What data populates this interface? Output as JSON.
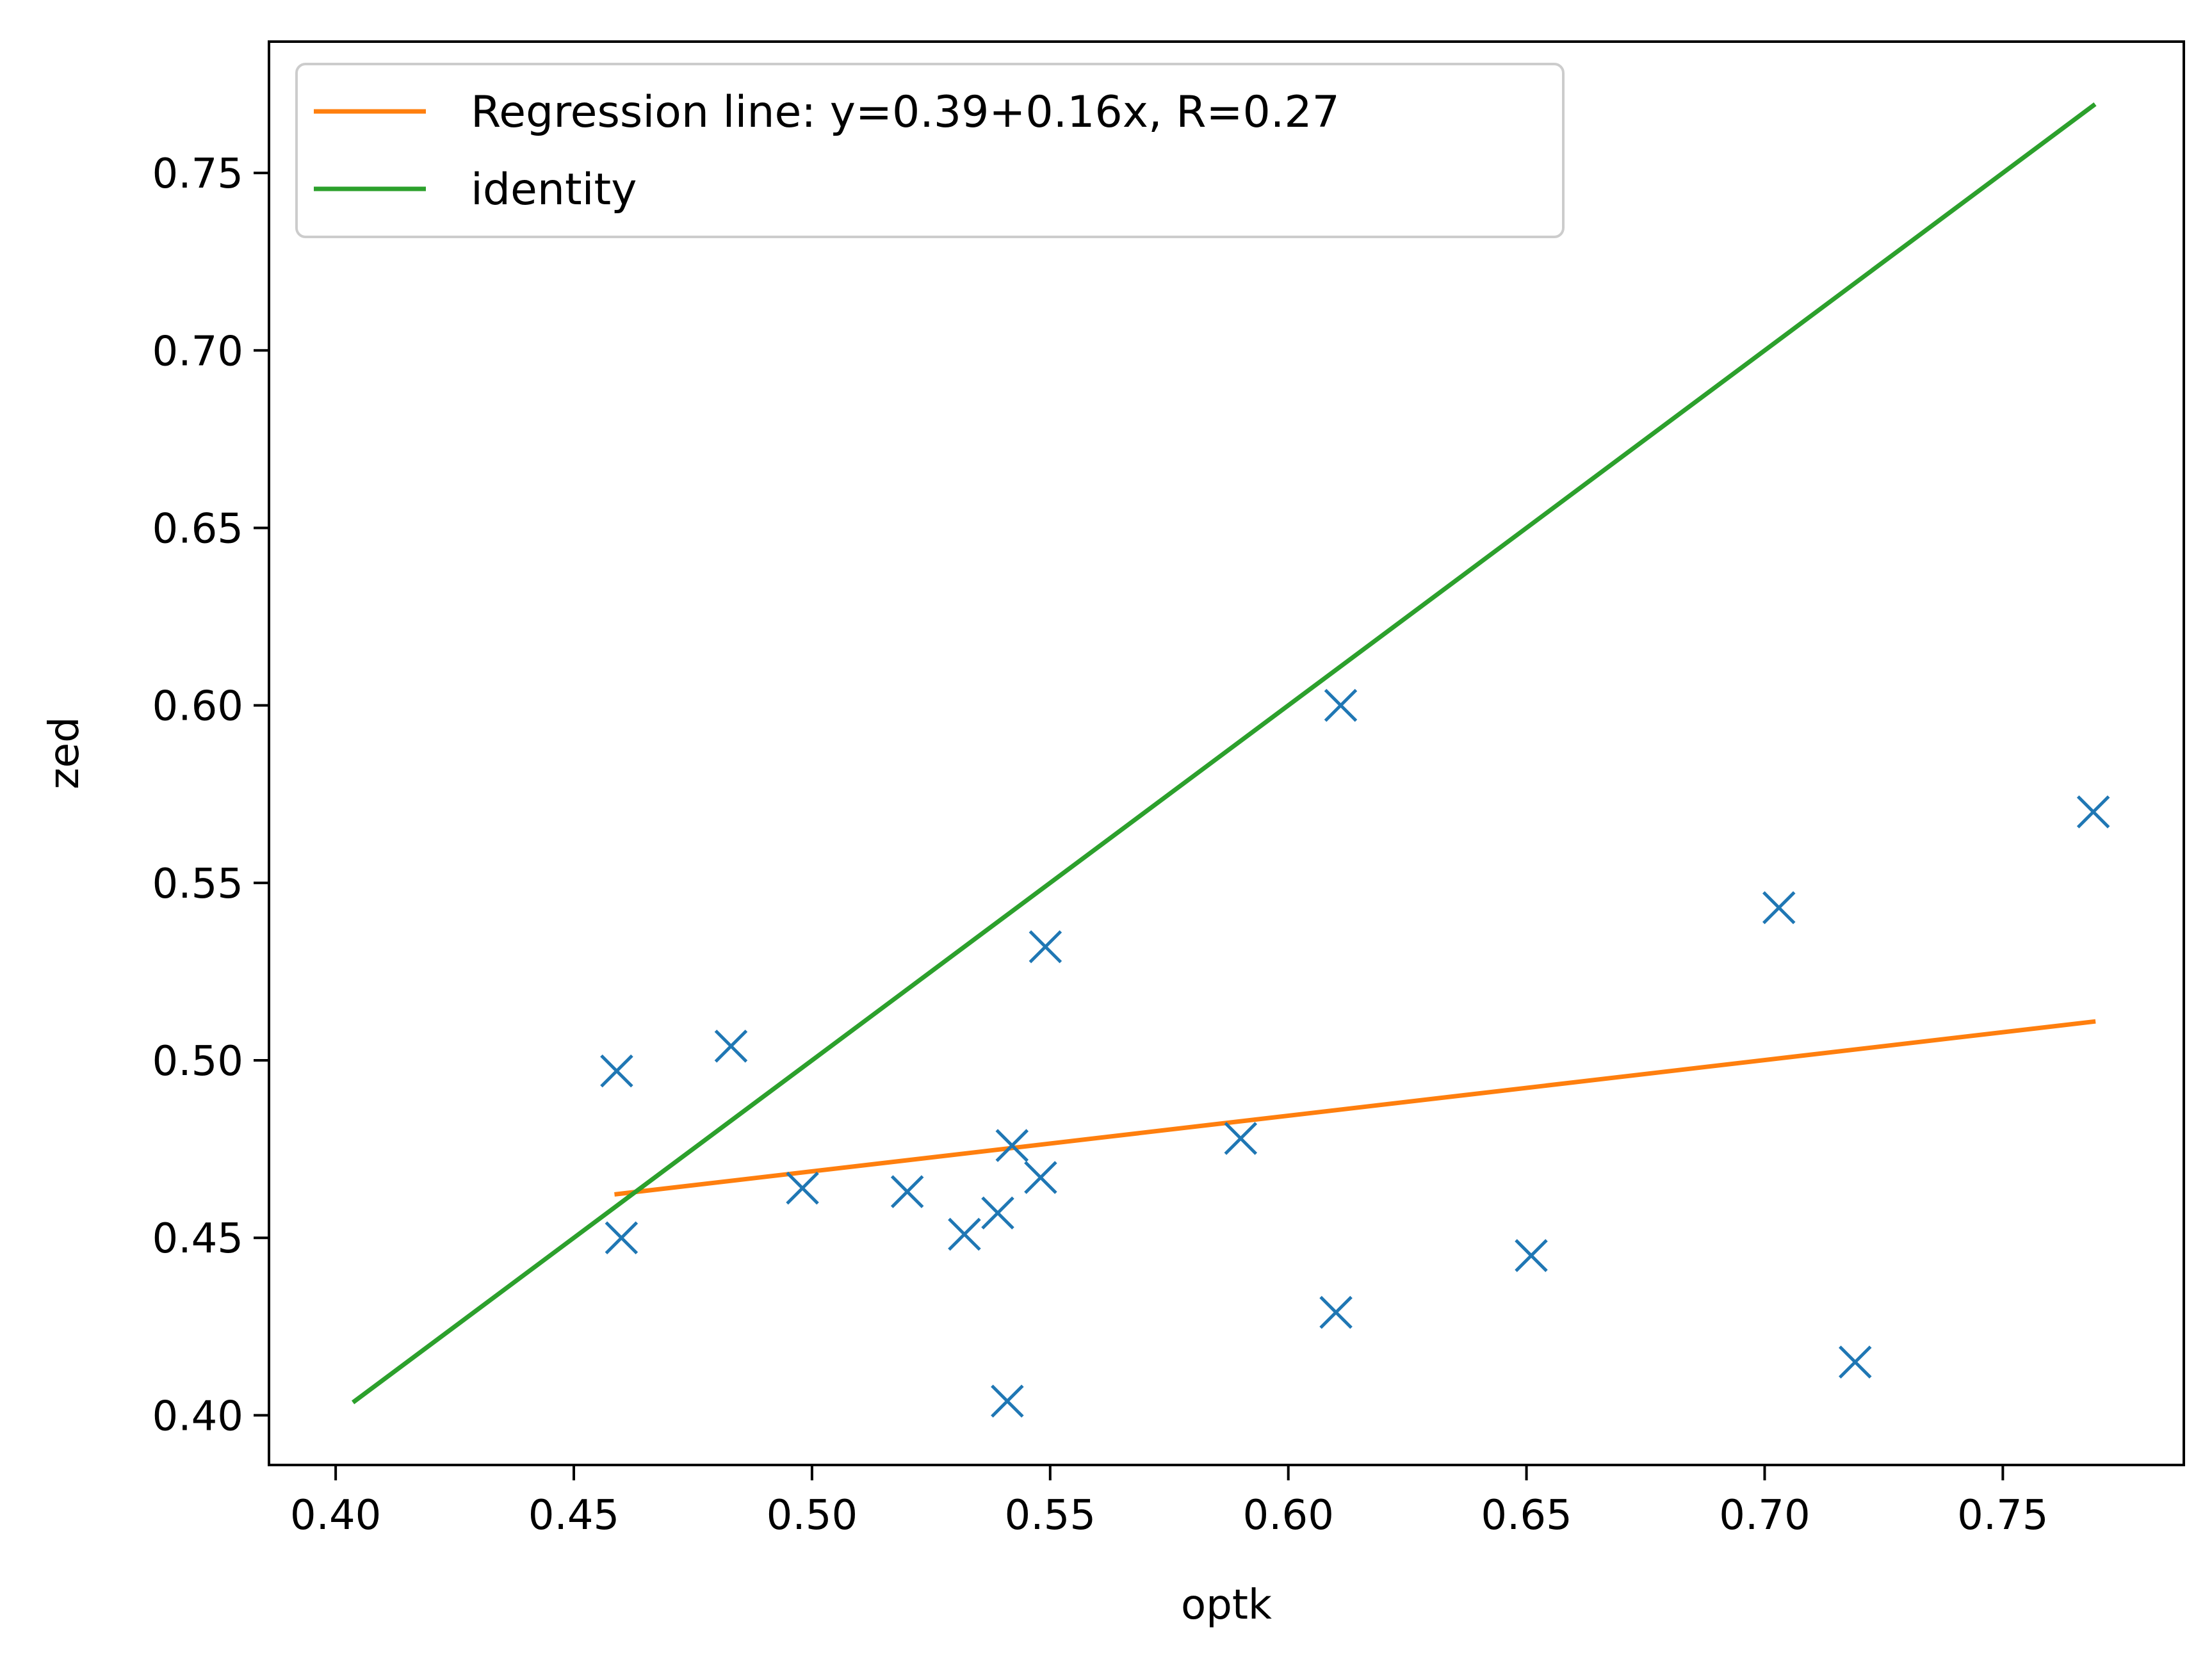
{
  "chart_data": {
    "type": "scatter",
    "title": "",
    "xlabel": "optk",
    "ylabel": "zed",
    "xlim": [
      0.386,
      0.788
    ],
    "ylim": [
      0.386,
      0.787
    ],
    "xticks": [
      "0.40",
      "0.45",
      "0.50",
      "0.55",
      "0.60",
      "0.65",
      "0.70",
      "0.75"
    ],
    "yticks": [
      "0.40",
      "0.45",
      "0.50",
      "0.55",
      "0.60",
      "0.65",
      "0.70",
      "0.75"
    ],
    "grid": false,
    "legend_position": "top-left",
    "series": [
      {
        "kind": "scatter",
        "marker": "x",
        "color": "#1f77b4",
        "points": [
          [
            0.459,
            0.497
          ],
          [
            0.46,
            0.45
          ],
          [
            0.483,
            0.504
          ],
          [
            0.498,
            0.464
          ],
          [
            0.52,
            0.463
          ],
          [
            0.532,
            0.451
          ],
          [
            0.539,
            0.457
          ],
          [
            0.541,
            0.404
          ],
          [
            0.542,
            0.476
          ],
          [
            0.548,
            0.467
          ],
          [
            0.549,
            0.532
          ],
          [
            0.59,
            0.478
          ],
          [
            0.61,
            0.429
          ],
          [
            0.611,
            0.6
          ],
          [
            0.651,
            0.445
          ],
          [
            0.703,
            0.543
          ],
          [
            0.719,
            0.415
          ],
          [
            0.769,
            0.57
          ]
        ]
      },
      {
        "kind": "line",
        "name": "Regression line: y=0.39+0.16x, R=0.27",
        "color": "#ff7f0e",
        "points": [
          [
            0.459,
            0.4623
          ],
          [
            0.769,
            0.5109
          ]
        ]
      },
      {
        "kind": "line",
        "name": "identity",
        "color": "#2ca02c",
        "points": [
          [
            0.404,
            0.404
          ],
          [
            0.769,
            0.769
          ]
        ]
      }
    ]
  }
}
